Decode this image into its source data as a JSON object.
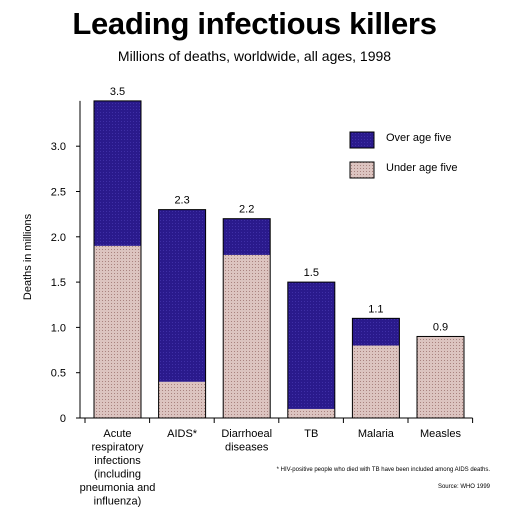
{
  "chart_data": {
    "type": "bar",
    "stacked": true,
    "title": "Leading infectious killers",
    "subtitle": "Millions of deaths, worldwide, all ages, 1998",
    "ylabel": "Deaths in millions",
    "xlabel": "",
    "ylim": [
      0,
      3.5
    ],
    "yticks": [
      0,
      0.5,
      1.0,
      1.5,
      2.0,
      2.5,
      3.0
    ],
    "ytick_labels": [
      "0",
      "0.5",
      "1.0",
      "1.5",
      "2.0",
      "2.5",
      "3.0"
    ],
    "grid": false,
    "legend_position": "top-right",
    "categories": [
      "Acute respiratory infections (including pneumonia and influenza)",
      "AIDS*",
      "Diarrhoeal diseases",
      "TB",
      "Malaria",
      "Measles"
    ],
    "category_lines": [
      [
        "Acute",
        "respiratory",
        "infections",
        "(including",
        "pneumonia and",
        "influenza)"
      ],
      [
        "AIDS*"
      ],
      [
        "Diarrhoeal",
        "diseases"
      ],
      [
        "TB"
      ],
      [
        "Malaria"
      ],
      [
        "Measles"
      ]
    ],
    "totals": [
      3.5,
      2.3,
      2.2,
      1.5,
      1.1,
      0.9
    ],
    "total_labels": [
      "3.5",
      "2.3",
      "2.2",
      "1.5",
      "1.1",
      "0.9"
    ],
    "series": [
      {
        "name": "Under age five",
        "color": "#dcc4c0",
        "values": [
          1.9,
          0.4,
          1.8,
          0.1,
          0.8,
          0.9
        ]
      },
      {
        "name": "Over age five",
        "color": "#2a1a8c",
        "values": [
          1.6,
          1.9,
          0.4,
          1.4,
          0.3,
          0.0
        ]
      }
    ],
    "legend_order": [
      "Over age five",
      "Under age five"
    ]
  },
  "footnotes": {
    "aids_note": "* HIV-positive people who died with TB have been included among AIDS deaths.",
    "source": "Source: WHO 1999"
  }
}
